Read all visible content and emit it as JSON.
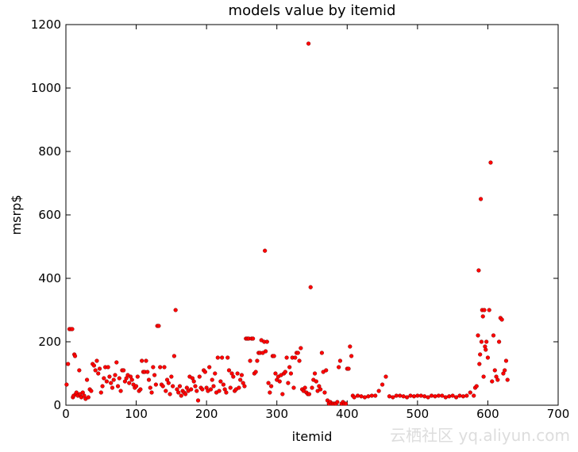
{
  "chart_data": {
    "type": "scatter",
    "title": "models value by itemid",
    "xlabel": "itemid",
    "ylabel": "msrp$",
    "watermark": "云栖社区 yq.aliyun.com",
    "color": "#ff0000",
    "xlim": [
      0,
      700
    ],
    "xticks": [
      0,
      100,
      200,
      300,
      400,
      500,
      600,
      700
    ],
    "ylim": [
      0,
      1200
    ],
    "yticks": [
      0,
      200,
      400,
      600,
      800,
      1000,
      1200
    ],
    "grid": false,
    "x": [
      1,
      3,
      5,
      7,
      9,
      10,
      11,
      12,
      13,
      14,
      15,
      17,
      19,
      20,
      22,
      24,
      26,
      28,
      30,
      32,
      34,
      36,
      38,
      40,
      42,
      44,
      46,
      48,
      50,
      52,
      54,
      56,
      58,
      60,
      62,
      64,
      66,
      68,
      70,
      72,
      74,
      76,
      78,
      80,
      82,
      84,
      86,
      88,
      90,
      92,
      94,
      96,
      98,
      100,
      102,
      104,
      106,
      108,
      110,
      112,
      114,
      116,
      118,
      120,
      122,
      124,
      126,
      128,
      130,
      132,
      134,
      136,
      138,
      140,
      142,
      144,
      146,
      148,
      150,
      152,
      154,
      156,
      158,
      160,
      162,
      164,
      166,
      168,
      170,
      172,
      174,
      176,
      178,
      180,
      182,
      184,
      186,
      188,
      190,
      192,
      194,
      196,
      198,
      200,
      202,
      204,
      206,
      208,
      210,
      212,
      214,
      216,
      218,
      220,
      222,
      224,
      226,
      228,
      230,
      232,
      234,
      236,
      238,
      240,
      242,
      244,
      246,
      248,
      250,
      252,
      254,
      256,
      258,
      260,
      262,
      264,
      266,
      268,
      270,
      272,
      274,
      276,
      278,
      280,
      282,
      283,
      284,
      286,
      288,
      290,
      292,
      294,
      296,
      298,
      300,
      302,
      304,
      306,
      308,
      310,
      312,
      314,
      316,
      318,
      320,
      322,
      324,
      326,
      328,
      330,
      332,
      334,
      336,
      338,
      340,
      342,
      344,
      345,
      346,
      348,
      350,
      352,
      354,
      356,
      358,
      360,
      362,
      364,
      366,
      368,
      370,
      372,
      374,
      376,
      378,
      380,
      382,
      384,
      386,
      388,
      390,
      392,
      394,
      396,
      398,
      400,
      402,
      404,
      406,
      408,
      410,
      415,
      420,
      425,
      430,
      435,
      440,
      445,
      450,
      455,
      460,
      465,
      470,
      475,
      480,
      485,
      490,
      495,
      500,
      505,
      510,
      515,
      520,
      525,
      530,
      535,
      540,
      545,
      550,
      555,
      560,
      565,
      570,
      575,
      580,
      582,
      584,
      586,
      587,
      588,
      589,
      590,
      591,
      592,
      593,
      594,
      595,
      596,
      597,
      598,
      600,
      602,
      604,
      606,
      608,
      610,
      612,
      614,
      616,
      618,
      620,
      622,
      624,
      626,
      628
    ],
    "y": [
      65,
      130,
      240,
      240,
      240,
      25,
      30,
      160,
      155,
      35,
      40,
      30,
      110,
      35,
      25,
      40,
      30,
      20,
      80,
      25,
      50,
      45,
      130,
      125,
      110,
      140,
      100,
      115,
      40,
      60,
      85,
      120,
      75,
      120,
      90,
      70,
      55,
      80,
      95,
      135,
      60,
      85,
      45,
      110,
      110,
      75,
      85,
      95,
      70,
      90,
      80,
      65,
      55,
      60,
      90,
      45,
      50,
      140,
      105,
      105,
      140,
      105,
      80,
      55,
      40,
      120,
      95,
      65,
      250,
      250,
      120,
      65,
      60,
      120,
      45,
      80,
      70,
      35,
      90,
      60,
      155,
      300,
      50,
      40,
      60,
      30,
      45,
      40,
      35,
      55,
      45,
      90,
      50,
      85,
      75,
      60,
      45,
      15,
      90,
      55,
      50,
      110,
      105,
      55,
      45,
      120,
      50,
      80,
      60,
      100,
      40,
      150,
      45,
      75,
      150,
      65,
      50,
      40,
      150,
      110,
      55,
      100,
      90,
      45,
      50,
      100,
      55,
      80,
      95,
      70,
      60,
      210,
      210,
      210,
      140,
      210,
      210,
      100,
      105,
      140,
      165,
      165,
      205,
      165,
      200,
      487,
      170,
      200,
      70,
      40,
      60,
      155,
      155,
      100,
      80,
      90,
      75,
      95,
      35,
      100,
      105,
      150,
      70,
      120,
      100,
      150,
      55,
      150,
      165,
      165,
      140,
      180,
      50,
      45,
      55,
      40,
      35,
      1140,
      35,
      372,
      55,
      80,
      100,
      75,
      45,
      60,
      50,
      165,
      105,
      40,
      110,
      15,
      5,
      10,
      5,
      5,
      5,
      5,
      10,
      120,
      140,
      5,
      10,
      5,
      5,
      115,
      115,
      185,
      155,
      30,
      25,
      30,
      28,
      25,
      28,
      30,
      30,
      45,
      65,
      90,
      28,
      25,
      30,
      30,
      28,
      25,
      30,
      28,
      30,
      30,
      28,
      25,
      30,
      28,
      30,
      30,
      25,
      28,
      30,
      25,
      30,
      28,
      30,
      40,
      30,
      55,
      60,
      220,
      425,
      130,
      160,
      650,
      200,
      300,
      280,
      90,
      300,
      185,
      175,
      200,
      150,
      300,
      765,
      75,
      220,
      110,
      90,
      80,
      200,
      275,
      270,
      100,
      110,
      140,
      80
    ]
  }
}
